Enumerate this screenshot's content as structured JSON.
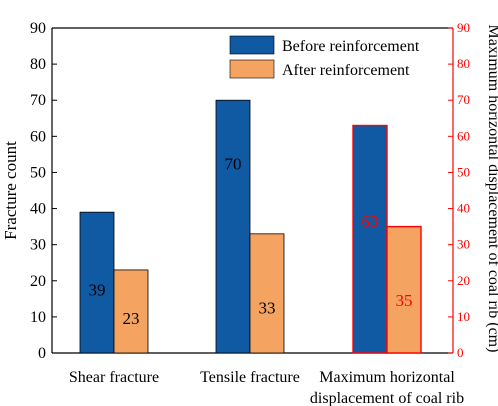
{
  "chart_data": {
    "type": "bar",
    "categories": [
      "Shear fracture",
      "Tensile fracture",
      "Maximum horizontal displacement of coal rib"
    ],
    "category_lines": [
      [
        "Shear fracture"
      ],
      [
        "Tensile fracture"
      ],
      [
        "Maximum horizontal",
        "displacement of coal rib"
      ]
    ],
    "series": [
      {
        "name": "Before reinforcement",
        "values": [
          39,
          70,
          63
        ],
        "color": "#0f5aa3"
      },
      {
        "name": "After reinforcement",
        "values": [
          23,
          33,
          35
        ],
        "color": "#f4a460"
      }
    ],
    "secondary_axis_category_index": 2,
    "ylabel": "Fracture count",
    "ylabel_right": "Maximum horizontal displacement of coal rib (cm)",
    "ylim": [
      0,
      90
    ],
    "ylim_right": [
      0,
      90
    ],
    "yticks": [
      0,
      10,
      20,
      30,
      40,
      50,
      60,
      70,
      80,
      90
    ],
    "right_axis_color": "#ff0000",
    "legend_position": "top-right",
    "grid": false
  }
}
